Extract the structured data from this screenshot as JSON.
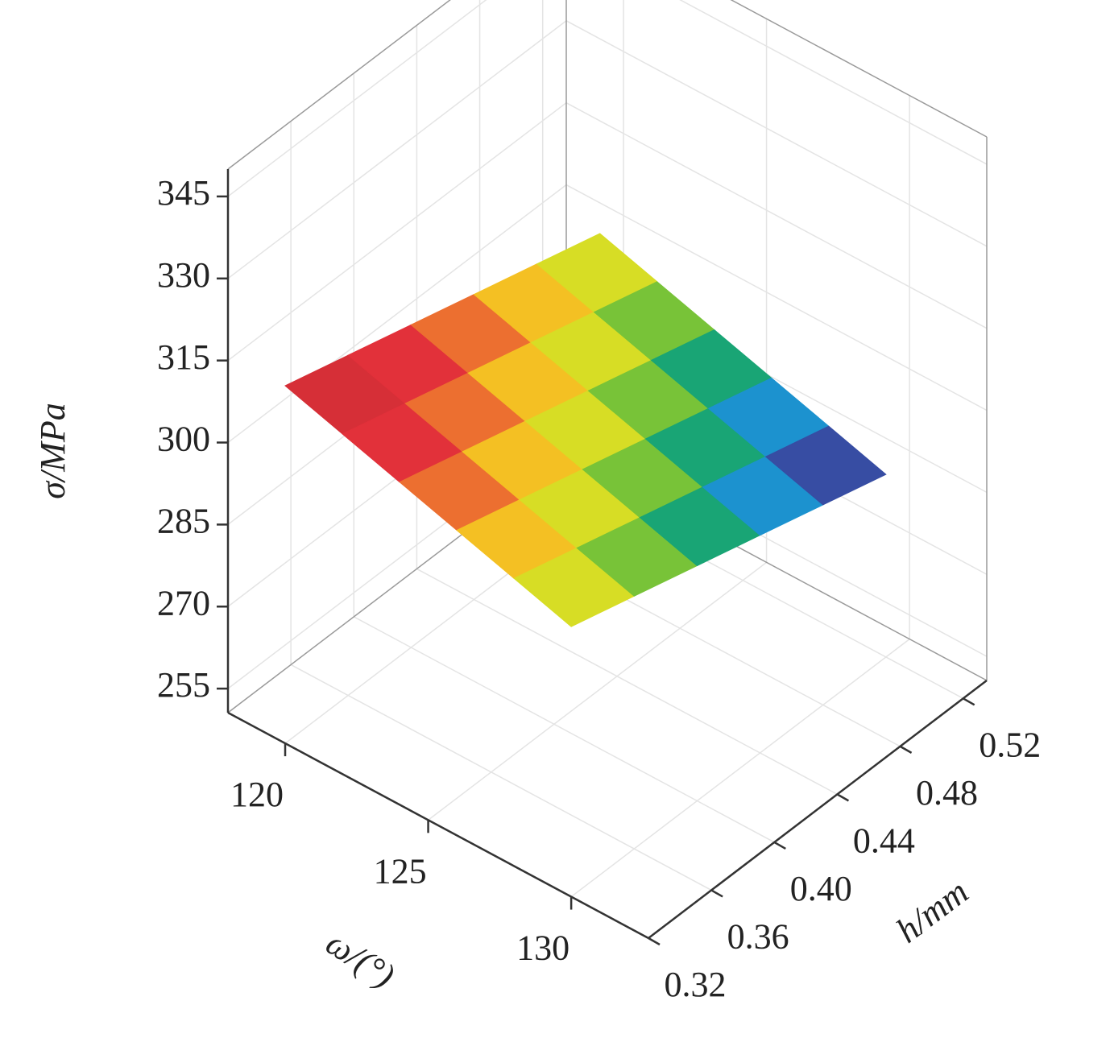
{
  "chart_data": {
    "type": "surface",
    "xlabel": "ω/(°)",
    "ylabel": "h/mm",
    "zlabel": "σ/MPa",
    "x": [
      120,
      122,
      124,
      126,
      128,
      130
    ],
    "y": [
      0.32,
      0.36,
      0.4,
      0.44,
      0.48,
      0.52
    ],
    "z": [
      [
        316,
        312.8,
        309.6,
        306.4,
        303.2,
        300
      ],
      [
        312.8,
        309.6,
        306.4,
        303.2,
        300,
        296.8
      ],
      [
        309.6,
        306.4,
        303.2,
        300,
        296.8,
        293.6
      ],
      [
        306.4,
        303.2,
        300,
        296.8,
        293.6,
        290.4
      ],
      [
        303.2,
        300,
        296.8,
        293.6,
        290.4,
        287.2
      ],
      [
        300,
        296.8,
        293.6,
        290.4,
        287.2,
        284
      ]
    ],
    "xlim": [
      118,
      132.7
    ],
    "ylim": [
      0.32,
      0.535
    ],
    "zlim": [
      250.6,
      350
    ],
    "xticks": [
      120,
      125,
      130
    ],
    "yticks": [
      0.32,
      0.36,
      {
        "value": 0.4,
        "label": "0.40"
      },
      0.44,
      0.48,
      0.52
    ],
    "zticks": [
      255,
      270,
      285,
      300,
      315,
      330,
      345
    ],
    "colorscale": [
      "#8a3aa6",
      "#2e4fa3",
      "#18a3da",
      "#19a64a",
      "#b8d62c",
      "#f6e41d",
      "#f08a2c",
      "#e2313a",
      "#e2313a",
      "#6e1b1e"
    ],
    "grid": true
  }
}
